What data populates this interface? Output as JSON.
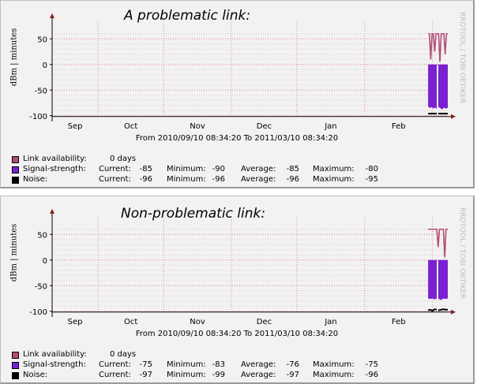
{
  "chart_data": [
    {
      "type": "line",
      "title": "A problematic link:",
      "ylabel": "dBm | minutes",
      "watermark": "RRDTOOL / TOBI OETIKER",
      "range_text": "From 2010/09/10 08:34:20 To 2011/03/10 08:34:20",
      "ylim": [
        -105,
        75
      ],
      "yticks": [
        50,
        0,
        -50,
        -100
      ],
      "ytick_labels": [
        "50",
        "0",
        "-50",
        "-100"
      ],
      "xticks": [
        "Sep",
        "Oct",
        "Nov",
        "Dec",
        "Jan",
        "Feb"
      ],
      "time_range_days": [
        0,
        181
      ],
      "legend": [
        {
          "name": "Link availability:",
          "color": "#b34d78",
          "availability": "0 days"
        },
        {
          "name": "Signal-strength:",
          "color": "#7a20d0",
          "current": "-85",
          "minimum": "-90",
          "average": "-85",
          "maximum": "-80"
        },
        {
          "name": "Noise:",
          "color": "#000000",
          "current": "-96",
          "minimum": "-96",
          "average": "-96",
          "maximum": "-95"
        }
      ],
      "stat_labels": {
        "current": "Current:",
        "minimum": "Minimum:",
        "average": "Average:",
        "maximum": "Maximum:"
      },
      "series": [
        {
          "name": "Link availability",
          "x": [
            172,
            172.6,
            173.2,
            173.8,
            174.4,
            175,
            175.6,
            176.2,
            176.8,
            177.4,
            178,
            178.6,
            179.2,
            179.8,
            180.4,
            181
          ],
          "values": [
            60,
            60,
            10,
            60,
            60,
            25,
            60,
            60,
            60,
            5,
            60,
            60,
            60,
            20,
            60,
            60
          ]
        },
        {
          "name": "Signal-strength",
          "x": [
            172,
            172.8,
            173.6,
            174.4,
            175.2,
            176,
            176.8,
            177.6,
            178.4,
            179.2,
            180,
            181
          ],
          "values": [
            -82,
            -85,
            -83,
            -86,
            -84,
            -87,
            -83,
            -85,
            -88,
            -84,
            -86,
            -85
          ],
          "fill_from": 0
        },
        {
          "name": "Noise",
          "x": [
            172,
            181
          ],
          "values": [
            -96,
            -96
          ]
        }
      ]
    },
    {
      "type": "line",
      "title": "Non-problematic link:",
      "ylabel": "dBm | minutes",
      "watermark": "RRDTOOL / TOBI OETIKER",
      "range_text": "From 2010/09/10 08:34:20 To 2011/03/10 08:34:20",
      "ylim": [
        -105,
        75
      ],
      "yticks": [
        50,
        0,
        -50,
        -100
      ],
      "ytick_labels": [
        "50",
        "0",
        "-50",
        "-100"
      ],
      "xticks": [
        "Sep",
        "Oct",
        "Nov",
        "Dec",
        "Jan",
        "Feb"
      ],
      "time_range_days": [
        0,
        181
      ],
      "legend": [
        {
          "name": "Link availability:",
          "color": "#b34d78",
          "availability": "0 days"
        },
        {
          "name": "Signal-strength:",
          "color": "#7a20d0",
          "current": "-75",
          "minimum": "-83",
          "average": "-76",
          "maximum": "-75"
        },
        {
          "name": "Noise:",
          "color": "#000000",
          "current": "-97",
          "minimum": "-99",
          "average": "-97",
          "maximum": "-96"
        }
      ],
      "stat_labels": {
        "current": "Current:",
        "minimum": "Minimum:",
        "average": "Average:",
        "maximum": "Maximum:"
      },
      "series": [
        {
          "name": "Link availability",
          "x": [
            172,
            173,
            174,
            175,
            176,
            176.6,
            177.2,
            178,
            179,
            179.6,
            180.2,
            181
          ],
          "values": [
            60,
            60,
            60,
            60,
            60,
            25,
            60,
            60,
            60,
            5,
            60,
            60
          ]
        },
        {
          "name": "Signal-strength",
          "x": [
            172,
            173,
            174,
            175,
            176,
            177,
            178,
            179,
            180,
            181
          ],
          "values": [
            -75,
            -76,
            -75,
            -77,
            -75,
            -76,
            -78,
            -75,
            -76,
            -75
          ],
          "fill_from": 0
        },
        {
          "name": "Noise",
          "x": [
            172,
            173,
            174,
            175,
            176,
            177,
            178,
            179,
            180,
            181
          ],
          "values": [
            -98,
            -97,
            -99,
            -96,
            -97,
            -98,
            -97,
            -96,
            -97,
            -97
          ]
        }
      ]
    }
  ]
}
